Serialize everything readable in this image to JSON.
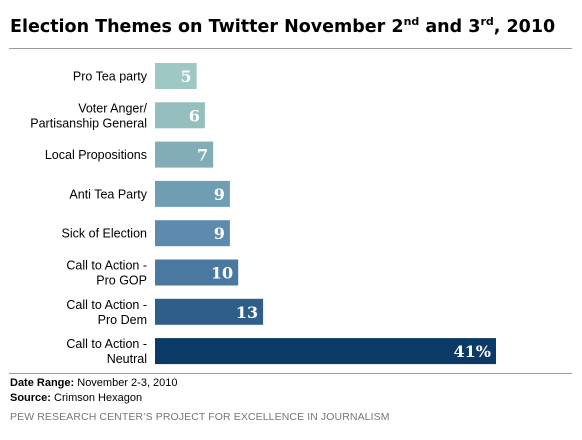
{
  "title": {
    "main": "Election Themes on Twitter November 2",
    "sup1": "nd",
    "and": " and 3",
    "sup2": "rd",
    "tail": ", 2010"
  },
  "chart_data": {
    "type": "bar",
    "orientation": "horizontal",
    "categories": [
      [
        "Pro Tea party"
      ],
      [
        "Voter Anger/",
        "Partisanship General"
      ],
      [
        "Local Propositions"
      ],
      [
        "Anti Tea Party"
      ],
      [
        "Sick of Election"
      ],
      [
        "Call to Action -",
        "Pro GOP"
      ],
      [
        "Call to Action -",
        "Pro Dem"
      ],
      [
        "Call to Action -",
        "Neutral"
      ]
    ],
    "values": [
      5,
      6,
      7,
      9,
      9,
      10,
      13,
      41
    ],
    "value_labels": [
      "5",
      "6",
      "7",
      "9",
      "9",
      "10",
      "13",
      "41%"
    ],
    "colors": [
      "#9ec8c4",
      "#95bfbf",
      "#82adb6",
      "#6f9db3",
      "#5e8aae",
      "#4a78a1",
      "#2f5f89",
      "#0b3a66"
    ],
    "ylim": [
      0,
      41
    ],
    "grid": false,
    "legend": "none"
  },
  "footer": {
    "date_label": "Date Range:",
    "date_value": " November 2-3, 2010",
    "source_label": "Source:",
    "source_value": " Crimson Hexagon"
  },
  "credit": "PEW RESEARCH CENTER’S PROJECT FOR EXCELLENCE IN JOURNALISM"
}
